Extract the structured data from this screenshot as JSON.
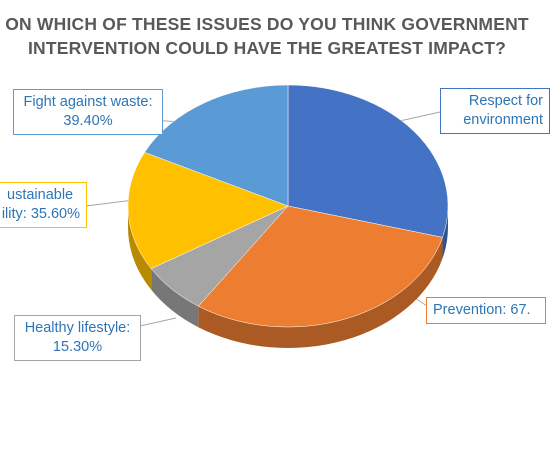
{
  "colors": {
    "respect_for_environment": "#4472c4",
    "prevention": "#ed7d31",
    "healthy_lifestyle": "#a5a5a5",
    "sustainable_mobility": "#ffc000",
    "fight_against_waste": "#5b9bd5",
    "title": "#595959",
    "label_text": "#2e75b6"
  },
  "chart_data": {
    "type": "pie",
    "style": "3d",
    "title_lines": [
      "ON WHICH OF THESE ISSUES DO YOU THINK GOVERNMENT",
      "INTERVENTION COULD HAVE THE GREATEST IMPACT?"
    ],
    "legend": "none",
    "slices": [
      {
        "key": "respect_for_environment",
        "value": 65.0
      },
      {
        "key": "prevention",
        "value": 67.5
      },
      {
        "key": "healthy_lifestyle",
        "value": 15.3
      },
      {
        "key": "sustainable_mobility",
        "value": 35.6
      },
      {
        "key": "fight_against_waste",
        "value": 39.4
      }
    ],
    "data_labels": {
      "respect_for_environment": {
        "line1": "Respect for",
        "line2": "environment"
      },
      "prevention": {
        "line1": "Prevention: 67.",
        "line2": ""
      },
      "healthy_lifestyle": {
        "line1": "Healthy lifestyle:",
        "line2": "15.30%"
      },
      "sustainable_mobility": {
        "line1": "ustainable",
        "line2": "ility: 35.60%"
      },
      "fight_against_waste": {
        "line1": "Fight against waste:",
        "line2": "39.40%"
      }
    }
  }
}
